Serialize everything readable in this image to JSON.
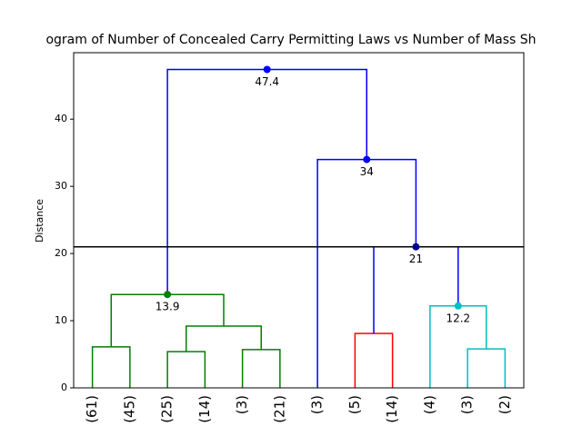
{
  "chart_data": {
    "type": "dendrogram",
    "title": "ogram of Number of Concealed Carry Permitting Laws vs Number of Mass Sh",
    "y_label": "Distance",
    "categories": [
      "(61)",
      "(45)",
      "(25)",
      "(14)",
      "(3)",
      "(21)",
      "(3)",
      "(5)",
      "(14)",
      "(4)",
      "(3)",
      "(2)"
    ],
    "xlim": [
      0,
      120
    ],
    "ylim": [
      0,
      49.9
    ],
    "yticks": [
      0,
      10,
      20,
      30,
      40
    ],
    "links": [
      {
        "color": "#008000",
        "x": [
          5,
          5,
          15,
          15
        ],
        "y": [
          0,
          6.1,
          6.1,
          0
        ]
      },
      {
        "color": "#008000",
        "x": [
          25,
          25,
          35,
          35
        ],
        "y": [
          0,
          5.4,
          5.4,
          0
        ]
      },
      {
        "color": "#008000",
        "x": [
          45,
          45,
          55,
          55
        ],
        "y": [
          0,
          5.7,
          5.7,
          0
        ]
      },
      {
        "color": "#008000",
        "x": [
          30,
          30,
          50,
          50
        ],
        "y": [
          5.4,
          9.2,
          9.2,
          5.7
        ]
      },
      {
        "color": "#008000",
        "x": [
          10,
          10,
          40,
          40
        ],
        "y": [
          6.1,
          13.9,
          13.9,
          9.2
        ]
      },
      {
        "color": "#ff0000",
        "x": [
          75,
          75,
          85,
          85
        ],
        "y": [
          0,
          8.1,
          8.1,
          0
        ]
      },
      {
        "color": "#00bfbf",
        "x": [
          105,
          105,
          115,
          115
        ],
        "y": [
          0,
          5.8,
          5.8,
          0
        ]
      },
      {
        "color": "#00bfbf",
        "x": [
          95,
          95,
          110,
          110
        ],
        "y": [
          0,
          12.2,
          12.2,
          5.8
        ]
      },
      {
        "color": "#0000ff",
        "x": [
          80,
          80,
          102.5,
          102.5
        ],
        "y": [
          8.1,
          21,
          21,
          12.2
        ]
      },
      {
        "color": "#0000ff",
        "x": [
          65,
          65,
          91.25,
          91.25
        ],
        "y": [
          0,
          34,
          34,
          21
        ]
      },
      {
        "color": "#0000ff",
        "x": [
          25,
          25,
          78.125,
          78.125
        ],
        "y": [
          13.9,
          47.4,
          47.4,
          34
        ]
      }
    ],
    "annotations": [
      {
        "x": 51.5625,
        "y": 47.4,
        "color": "#0000ff"
      },
      {
        "x": 78.125,
        "y": 34,
        "color": "#0000ff"
      },
      {
        "x": 91.25,
        "y": 21,
        "color": "#00008b"
      },
      {
        "x": 25,
        "y": 13.9,
        "color": "#008000"
      },
      {
        "x": 102.5,
        "y": 12.2,
        "color": "#00bfbf"
      }
    ],
    "threshold": 21,
    "threshold_color": "#000000"
  }
}
